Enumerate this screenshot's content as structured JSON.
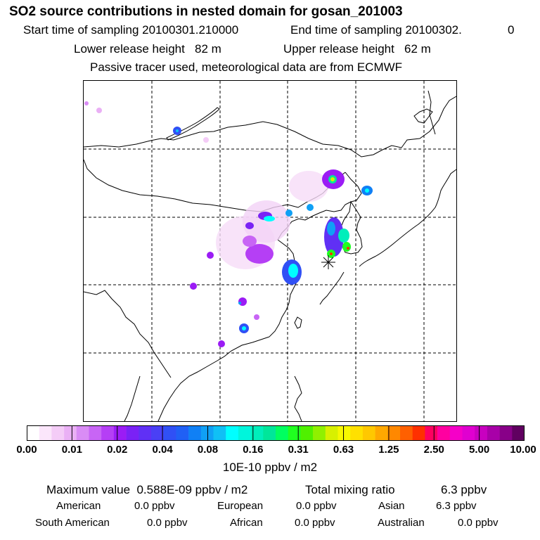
{
  "header": {
    "title": "SO2 source contributions in nested domain for gosan_201003",
    "start_label": "Start time of sampling 20100301.210000",
    "end_label": "End time of sampling 20100302.",
    "end_value": "0",
    "lower_label": "Lower release height   82 m",
    "upper_label": "Upper release height   62 m",
    "note": "Passive tracer used, meteorological data are from ECMWF"
  },
  "chart_data": {
    "type": "heatmap",
    "title": "SO2 source contributions in nested domain for gosan_201003",
    "colorbar": {
      "unit": "10E-10 ppbv / m2",
      "tick_labels": [
        "0.00",
        "0.01",
        "0.02",
        "0.04",
        "0.08",
        "0.16",
        "0.31",
        "0.63",
        "1.25",
        "2.50",
        "5.00",
        "10.00"
      ],
      "colors": [
        "#ffffff",
        "#fbe6fb",
        "#f4ccf7",
        "#eab0f5",
        "#d98cf5",
        "#c865f5",
        "#b53ff5",
        "#9b1cf5",
        "#7a22f5",
        "#6030f5",
        "#4a40f5",
        "#3050f5",
        "#2060f5",
        "#1080f5",
        "#10a0f5",
        "#10c0f5",
        "#00ffff",
        "#00f5dc",
        "#00eebb",
        "#00e69a",
        "#00ff60",
        "#20ff20",
        "#50f000",
        "#90f000",
        "#d8f000",
        "#f8f800",
        "#ffe000",
        "#ffc800",
        "#ffa800",
        "#ff8800",
        "#ff6000",
        "#ff3000",
        "#ff0060",
        "#ff00a0",
        "#f500c8",
        "#e000d0",
        "#c800c0",
        "#a800a8",
        "#880088",
        "#600060"
      ]
    },
    "receptor_marker": "asterisk"
  },
  "summary": {
    "max_value_label": "Maximum value  0.588E-09 ppbv / m2",
    "total_label": "Total mixing ratio",
    "total_value": "6.3 ppbv",
    "sources": [
      {
        "name": "American",
        "value": "0.0 ppbv"
      },
      {
        "name": "European",
        "value": "0.0 ppbv"
      },
      {
        "name": "Asian",
        "value": "6.3 ppbv"
      },
      {
        "name": "South American",
        "value": "0.0 ppbv"
      },
      {
        "name": "African",
        "value": "0.0 ppbv"
      },
      {
        "name": "Australian",
        "value": "0.0 ppbv"
      }
    ]
  }
}
